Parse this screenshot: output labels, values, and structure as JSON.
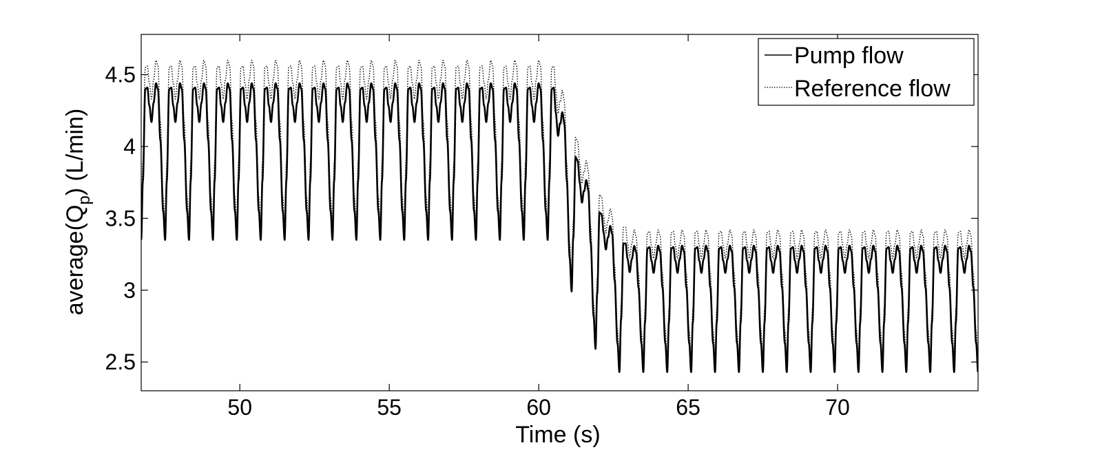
{
  "chart_data": {
    "type": "line",
    "title": "",
    "xlabel": "Time (s)",
    "ylabel_main": "average(Q",
    "ylabel_sub": "p",
    "ylabel_tail": ") (L/min)",
    "xlim": [
      46.7,
      74.7
    ],
    "ylim": [
      2.3,
      4.78
    ],
    "x_ticks": [
      50,
      55,
      60,
      65,
      70
    ],
    "x_tick_labels": [
      "50",
      "55",
      "60",
      "65",
      "70"
    ],
    "y_ticks": [
      2.5,
      3,
      3.5,
      4,
      4.5
    ],
    "y_tick_labels": [
      "2.5",
      "3",
      "3.5",
      "4",
      "4.5"
    ],
    "grid": false,
    "legend_position": "top-right",
    "beat_period_s": 0.8,
    "series": [
      {
        "name": "Pump flow",
        "style": "solid",
        "color": "#000000",
        "description_points": [
          {
            "x": 46.7,
            "y": 4.17
          },
          {
            "x": 47.1,
            "y": 4.44
          },
          {
            "x": 47.5,
            "y": 3.35
          },
          {
            "x": 47.75,
            "y": 4.4
          },
          {
            "x": 47.95,
            "y": 4.17
          },
          {
            "x": 48.15,
            "y": 4.44
          },
          {
            "x": 60.0,
            "y": 4.4
          },
          {
            "x": 60.2,
            "y": 4.44
          },
          {
            "x": 60.55,
            "y": 3.28
          },
          {
            "x": 60.8,
            "y": 3.98
          },
          {
            "x": 61.35,
            "y": 2.78
          },
          {
            "x": 61.6,
            "y": 3.6
          },
          {
            "x": 62.15,
            "y": 2.58
          },
          {
            "x": 62.4,
            "y": 3.44
          },
          {
            "x": 63.0,
            "y": 2.48
          },
          {
            "x": 63.4,
            "y": 3.32
          },
          {
            "x": 64.0,
            "y": 2.43
          },
          {
            "x": 64.3,
            "y": 3.31
          },
          {
            "x": 74.7,
            "y": 3.2
          }
        ],
        "phase1": {
          "x_start": 46.7,
          "x_end": 60.5,
          "peak": 4.44,
          "second_peak": 4.4,
          "notch": 4.17,
          "trough": 3.35
        },
        "phase2": {
          "x_start": 63.5,
          "x_end": 74.7,
          "peak": 3.31,
          "second_peak": 3.29,
          "notch": 3.12,
          "trough": 2.43
        }
      },
      {
        "name": "Reference flow",
        "style": "dotted",
        "color": "#000000",
        "phase1": {
          "x_start": 46.7,
          "x_end": 60.5,
          "peak": 4.6,
          "second_peak": 4.55,
          "notch": 4.33,
          "trough": 3.45
        },
        "phase2": {
          "x_start": 63.5,
          "x_end": 74.7,
          "peak": 3.42,
          "second_peak": 3.4,
          "notch": 3.22,
          "trough": 2.52
        }
      }
    ]
  }
}
